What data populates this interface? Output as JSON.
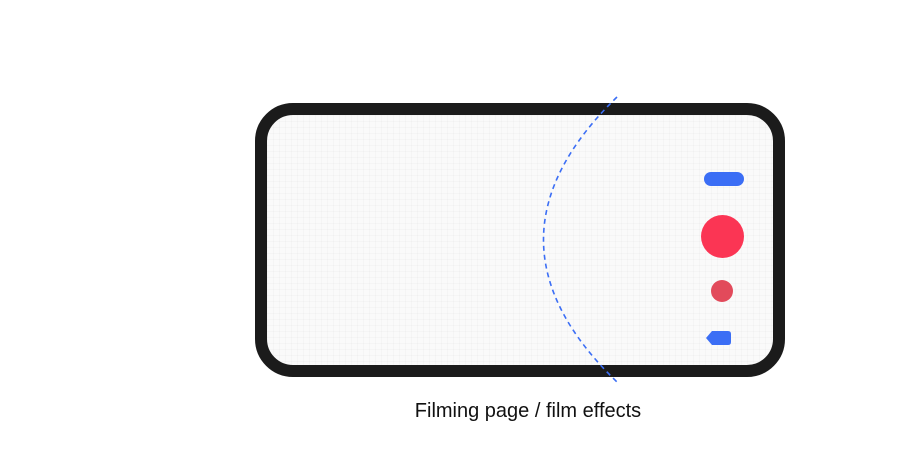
{
  "caption": "Filming page / film effects",
  "icons": {
    "top_control": "pill-toggle-icon",
    "record": "record-icon",
    "effect": "effect-dot-icon",
    "back": "back-arrow-icon"
  },
  "colors": {
    "frame": "#1b1b1b",
    "screen": "#fafafa",
    "accent_blue": "#3b6ef5",
    "record_red": "#fb3554",
    "effect_red": "#e24a5b",
    "guide_line": "#3b6ef5"
  }
}
